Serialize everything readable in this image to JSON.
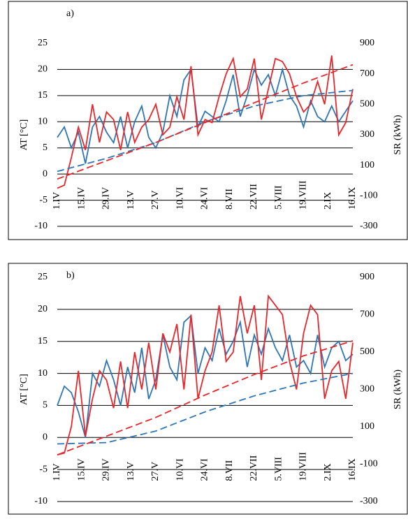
{
  "chart_data": [
    {
      "type": "line",
      "title": "a)",
      "ylabel": "AT [°C]",
      "y2label": "SR (kWh)",
      "xlim": [
        0,
        168
      ],
      "xticks": [
        {
          "value": 0,
          "label": "1.IV"
        },
        {
          "value": 14,
          "label": "15.IV"
        },
        {
          "value": 28,
          "label": "29.IV"
        },
        {
          "value": 42,
          "label": "13.V"
        },
        {
          "value": 56,
          "label": "27.V"
        },
        {
          "value": 70,
          "label": "10.VI"
        },
        {
          "value": 84,
          "label": "24.VI"
        },
        {
          "value": 98,
          "label": "8.VII"
        },
        {
          "value": 112,
          "label": "22.VII"
        },
        {
          "value": 126,
          "label": "5.VIII"
        },
        {
          "value": 140,
          "label": "19.VIII"
        },
        {
          "value": 154,
          "label": "2.IX"
        },
        {
          "value": 168,
          "label": "16.IX"
        }
      ],
      "ylim": [
        -10,
        25
      ],
      "yticks": [
        -10,
        -5,
        0,
        5,
        10,
        15,
        20,
        25
      ],
      "y2lim": [
        -300,
        900
      ],
      "y2ticks": [
        -300,
        -100,
        100,
        300,
        500,
        700,
        900
      ],
      "grid": true,
      "series": [
        {
          "color": "#2e75b6",
          "linestyle": "solid",
          "x": [
            0,
            4,
            8,
            12,
            16,
            20,
            24,
            28,
            32,
            36,
            40,
            44,
            48,
            52,
            56,
            60,
            64,
            68,
            72,
            76,
            80,
            84,
            88,
            92,
            96,
            100,
            104,
            108,
            112,
            116,
            120,
            124,
            128,
            132,
            136,
            140,
            144,
            148,
            152,
            156,
            160,
            164,
            168
          ],
          "values": [
            7,
            9,
            5,
            8,
            2,
            9,
            11,
            8,
            6,
            11,
            5,
            10,
            13,
            7,
            5,
            8,
            15,
            11,
            18,
            20,
            9,
            12,
            11,
            10,
            14,
            19,
            11,
            15,
            20,
            17,
            19,
            15,
            20,
            15,
            13,
            9,
            14,
            11,
            10,
            13,
            10,
            12,
            14
          ]
        },
        {
          "color": "#e8262a",
          "linestyle": "solid",
          "axis": "y2",
          "x": [
            0,
            4,
            8,
            12,
            16,
            20,
            24,
            28,
            32,
            36,
            40,
            44,
            48,
            52,
            56,
            60,
            64,
            68,
            72,
            76,
            80,
            84,
            88,
            92,
            96,
            100,
            104,
            108,
            112,
            116,
            120,
            124,
            128,
            132,
            136,
            140,
            144,
            148,
            152,
            156,
            160,
            164,
            168
          ],
          "values": [
            -50,
            -30,
            150,
            350,
            200,
            500,
            250,
            450,
            400,
            200,
            450,
            250,
            350,
            400,
            500,
            300,
            350,
            550,
            400,
            750,
            300,
            400,
            380,
            550,
            700,
            800,
            550,
            600,
            800,
            400,
            600,
            800,
            780,
            700,
            550,
            450,
            500,
            650,
            500,
            820,
            300,
            380,
            600
          ]
        },
        {
          "color": "#2e75b6",
          "linestyle": "dashed",
          "x": [
            0,
            28,
            56,
            84,
            112,
            140,
            168
          ],
          "values": [
            0.5,
            3,
            6,
            10,
            13,
            15,
            16
          ]
        },
        {
          "color": "#e8262a",
          "linestyle": "dashed",
          "axis": "y2",
          "x": [
            0,
            28,
            56,
            84,
            112,
            140,
            168
          ],
          "values": [
            10,
            130,
            250,
            380,
            510,
            640,
            760
          ]
        }
      ]
    },
    {
      "type": "line",
      "title": "b)",
      "ylabel": "AT [°C]",
      "y2label": "SR (kWh)",
      "xlim": [
        0,
        168
      ],
      "xticks": [
        {
          "value": 0,
          "label": "1.IV"
        },
        {
          "value": 14,
          "label": "15.IV"
        },
        {
          "value": 28,
          "label": "29.IV"
        },
        {
          "value": 42,
          "label": "13.V"
        },
        {
          "value": 56,
          "label": "27.V"
        },
        {
          "value": 70,
          "label": "10.VI"
        },
        {
          "value": 84,
          "label": "24.VI"
        },
        {
          "value": 98,
          "label": "8.VII"
        },
        {
          "value": 112,
          "label": "22.VII"
        },
        {
          "value": 126,
          "label": "5.VIII"
        },
        {
          "value": 140,
          "label": "19.VIII"
        },
        {
          "value": 154,
          "label": "2.IX"
        },
        {
          "value": 168,
          "label": "16.IX"
        }
      ],
      "ylim": [
        -10,
        25
      ],
      "yticks": [
        -10,
        -5,
        0,
        5,
        10,
        15,
        20,
        25
      ],
      "y2lim": [
        -300,
        900
      ],
      "y2ticks": [
        -300,
        -100,
        100,
        300,
        500,
        700,
        900
      ],
      "grid": true,
      "series": [
        {
          "color": "#2e75b6",
          "linestyle": "solid",
          "x": [
            0,
            4,
            8,
            12,
            16,
            20,
            24,
            28,
            32,
            36,
            40,
            44,
            48,
            52,
            56,
            60,
            64,
            68,
            72,
            76,
            80,
            84,
            88,
            92,
            96,
            100,
            104,
            108,
            112,
            116,
            120,
            124,
            128,
            132,
            136,
            140,
            144,
            148,
            152,
            156,
            160,
            164,
            168
          ],
          "values": [
            5,
            8,
            7,
            4,
            0,
            10,
            8,
            12,
            9,
            5,
            11,
            7,
            14,
            6,
            9,
            16,
            11,
            9,
            18,
            19,
            10,
            14,
            12,
            17,
            13,
            15,
            18,
            11,
            16,
            13,
            17,
            14,
            12,
            16,
            11,
            12,
            10,
            16,
            11,
            14,
            15,
            12,
            13
          ]
        },
        {
          "color": "#e8262a",
          "linestyle": "solid",
          "axis": "y2",
          "x": [
            0,
            4,
            8,
            12,
            16,
            20,
            24,
            28,
            32,
            36,
            40,
            44,
            48,
            52,
            56,
            60,
            64,
            68,
            72,
            76,
            80,
            84,
            88,
            92,
            96,
            100,
            104,
            108,
            112,
            116,
            120,
            124,
            128,
            132,
            136,
            140,
            144,
            148,
            152,
            156,
            160,
            164,
            168
          ],
          "values": [
            -50,
            -40,
            100,
            400,
            50,
            250,
            400,
            350,
            200,
            450,
            200,
            500,
            300,
            550,
            300,
            600,
            500,
            650,
            300,
            700,
            250,
            400,
            500,
            750,
            450,
            500,
            800,
            600,
            750,
            350,
            800,
            750,
            700,
            450,
            300,
            600,
            750,
            700,
            250,
            400,
            450,
            250,
            550
          ]
        },
        {
          "color": "#2e75b6",
          "linestyle": "dashed",
          "x": [
            0,
            28,
            56,
            84,
            112,
            140,
            168
          ],
          "values": [
            -1,
            -0.8,
            1,
            4,
            6.5,
            8.5,
            10
          ]
        },
        {
          "color": "#e8262a",
          "linestyle": "dashed",
          "axis": "y2",
          "x": [
            0,
            28,
            56,
            84,
            112,
            140,
            168
          ],
          "values": [
            -50,
            50,
            150,
            270,
            380,
            480,
            560
          ]
        }
      ]
    }
  ]
}
